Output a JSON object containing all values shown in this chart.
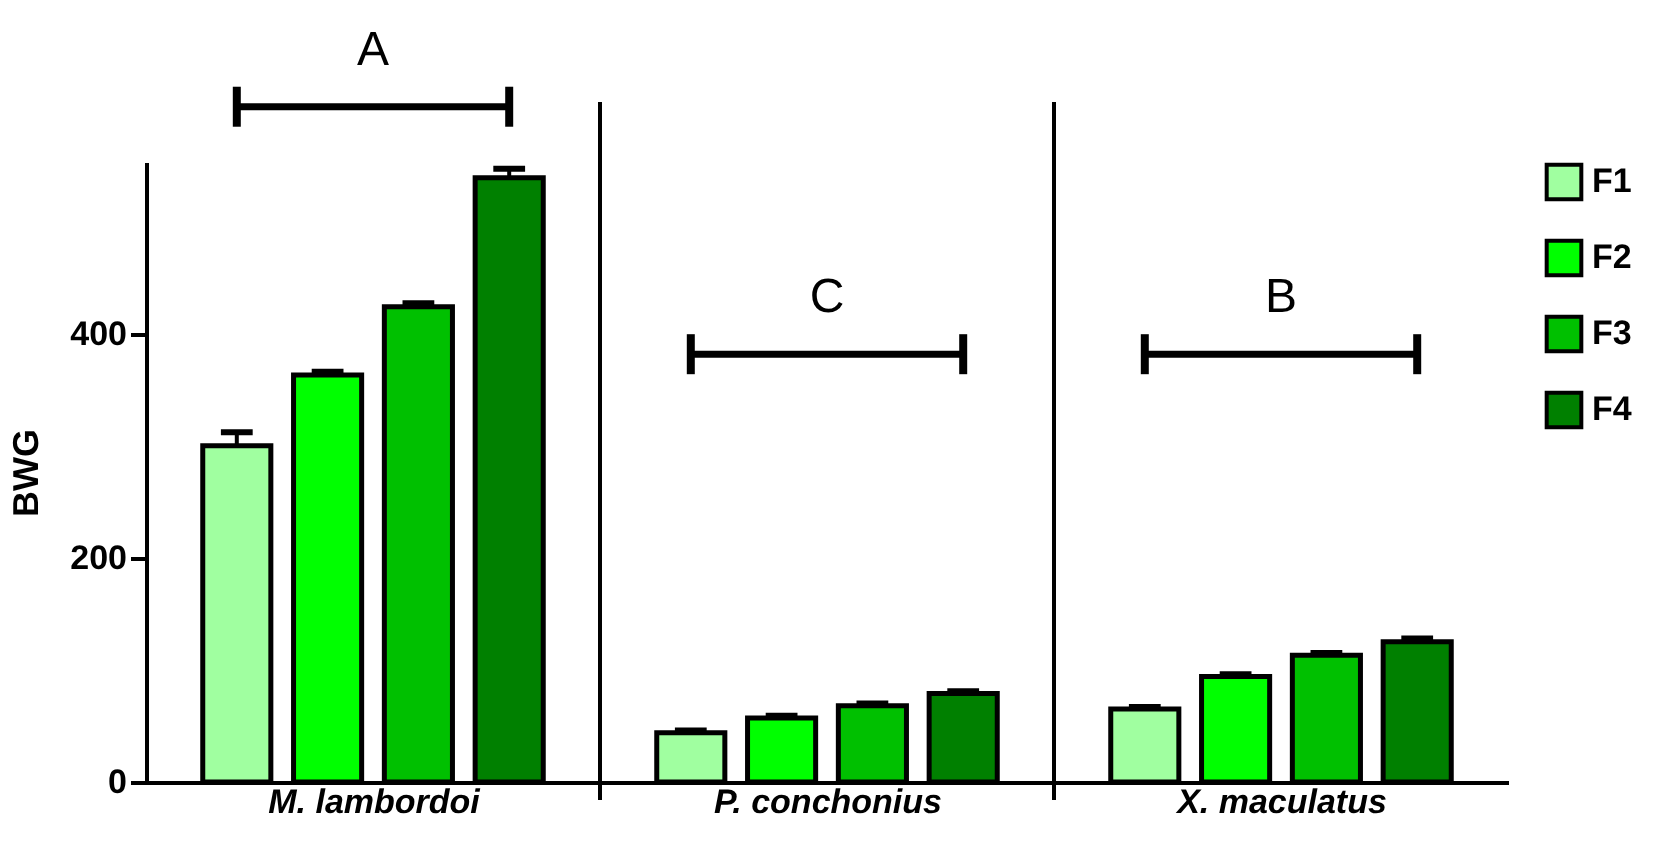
{
  "chart_data": {
    "type": "bar",
    "ylabel": "BWG",
    "categories": [
      "M. lambordoi",
      "P. conchonius",
      "X. maculatus"
    ],
    "series": [
      {
        "name": "F1",
        "color": "#a0ffa0",
        "values": [
          300,
          44,
          65
        ],
        "errors": [
          [
            300,
            312
          ],
          [
            44,
            46
          ],
          [
            65,
            67
          ]
        ]
      },
      {
        "name": "F2",
        "color": "#00ff00",
        "values": [
          363,
          57,
          94
        ],
        "errors": [
          [
            363,
            366
          ],
          [
            57,
            59
          ],
          [
            94,
            96
          ]
        ]
      },
      {
        "name": "F3",
        "color": "#00c000",
        "values": [
          424,
          68,
          113
        ],
        "errors": [
          [
            424,
            427
          ],
          [
            68,
            70
          ],
          [
            113,
            115
          ]
        ]
      },
      {
        "name": "F4",
        "color": "#008000",
        "values": [
          539,
          79,
          125
        ],
        "errors": [
          [
            539,
            547
          ],
          [
            79,
            81
          ],
          [
            125,
            128
          ]
        ]
      }
    ],
    "ylim": [
      0,
      553
    ],
    "yticks": [
      0,
      200,
      400
    ],
    "grid": false,
    "legend": "right",
    "annotations": [
      "A",
      "C",
      "B"
    ]
  }
}
